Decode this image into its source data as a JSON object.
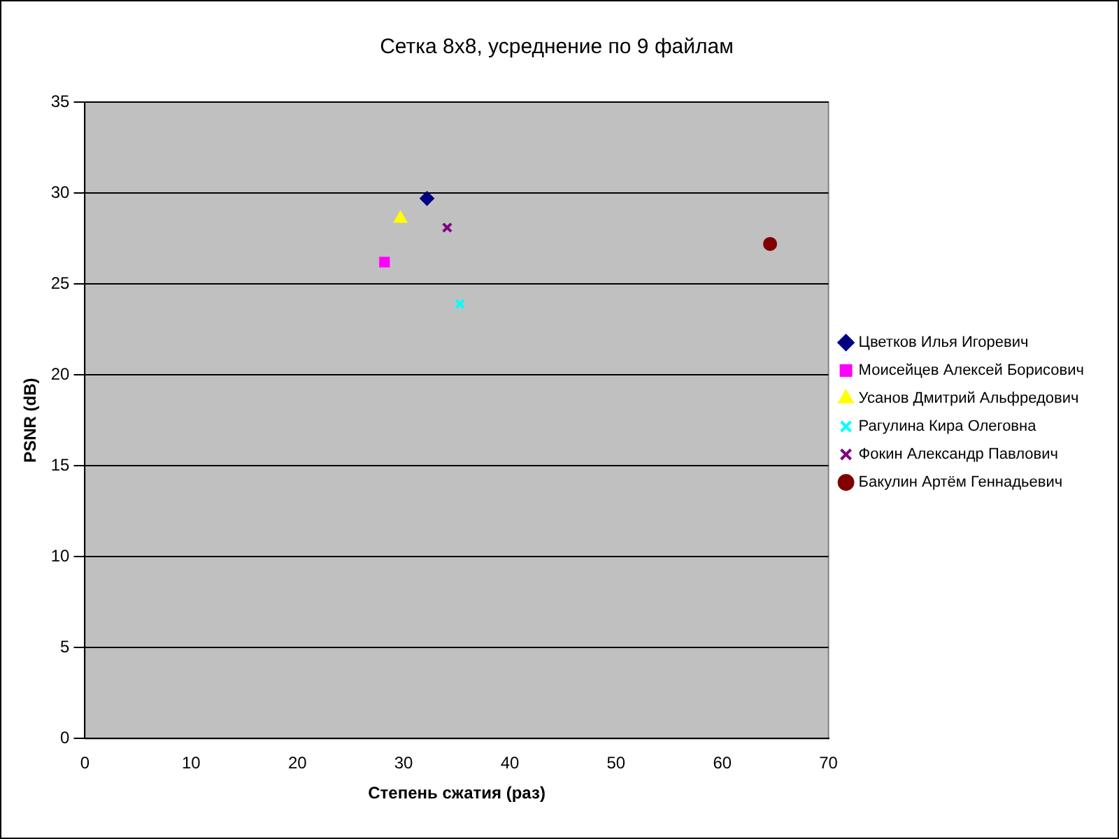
{
  "chart_data": {
    "type": "scatter",
    "title": "Сетка 8x8, усреднение по 9 файлам",
    "xlabel": "Степень сжатия (раз)",
    "ylabel": "PSNR (dB)",
    "xlim": [
      0,
      70
    ],
    "xticks": [
      0,
      10,
      20,
      30,
      40,
      50,
      60,
      70
    ],
    "ylim": [
      0,
      35
    ],
    "yticks": [
      0,
      5,
      10,
      15,
      20,
      25,
      30,
      35
    ],
    "grid": "y",
    "legend": "right",
    "series": [
      {
        "name": "Цветков Илья Игоревич",
        "color": "#000080",
        "marker": "diamond",
        "x": [
          32.2
        ],
        "values": [
          29.7
        ]
      },
      {
        "name": "Моисейцев Алексей Борисович",
        "color": "#ff00ff",
        "marker": "square",
        "x": [
          28.2
        ],
        "values": [
          26.2
        ]
      },
      {
        "name": "Усанов Дмитрий Альфредович",
        "color": "#ffff00",
        "marker": "triangle",
        "x": [
          29.7
        ],
        "values": [
          28.6
        ]
      },
      {
        "name": "Рагулина Кира Олеговна",
        "color": "#00ffff",
        "marker": "cross",
        "x": [
          35.3
        ],
        "values": [
          23.9
        ]
      },
      {
        "name": "Фокин Александр Павлович",
        "color": "#800080",
        "marker": "cross",
        "x": [
          34.1
        ],
        "values": [
          28.1
        ]
      },
      {
        "name": "Бакулин Артём Геннадьевич",
        "color": "#800000",
        "marker": "circle",
        "x": [
          64.5
        ],
        "values": [
          27.2
        ]
      }
    ]
  }
}
